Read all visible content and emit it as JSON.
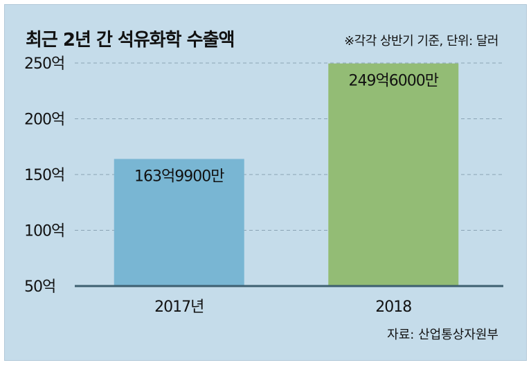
{
  "chart_data": {
    "type": "bar",
    "title": "최근 2년 간 석유화학 수출액",
    "subtitle": "※각각 상반기 기준, 단위: 달러",
    "source": "자료: 산업통상자원부",
    "categories": [
      "2017년",
      "2018"
    ],
    "values": [
      163.99,
      249.6
    ],
    "data_labels": [
      "163억9900만",
      "249억6000만"
    ],
    "ylim": [
      50,
      250
    ],
    "yticks": [
      50,
      100,
      150,
      200,
      250
    ],
    "ytick_labels": [
      "50억",
      "100억",
      "150억",
      "200억",
      "250억"
    ],
    "bar_colors": [
      "#79b6d3",
      "#93bc75"
    ],
    "grid": true
  }
}
